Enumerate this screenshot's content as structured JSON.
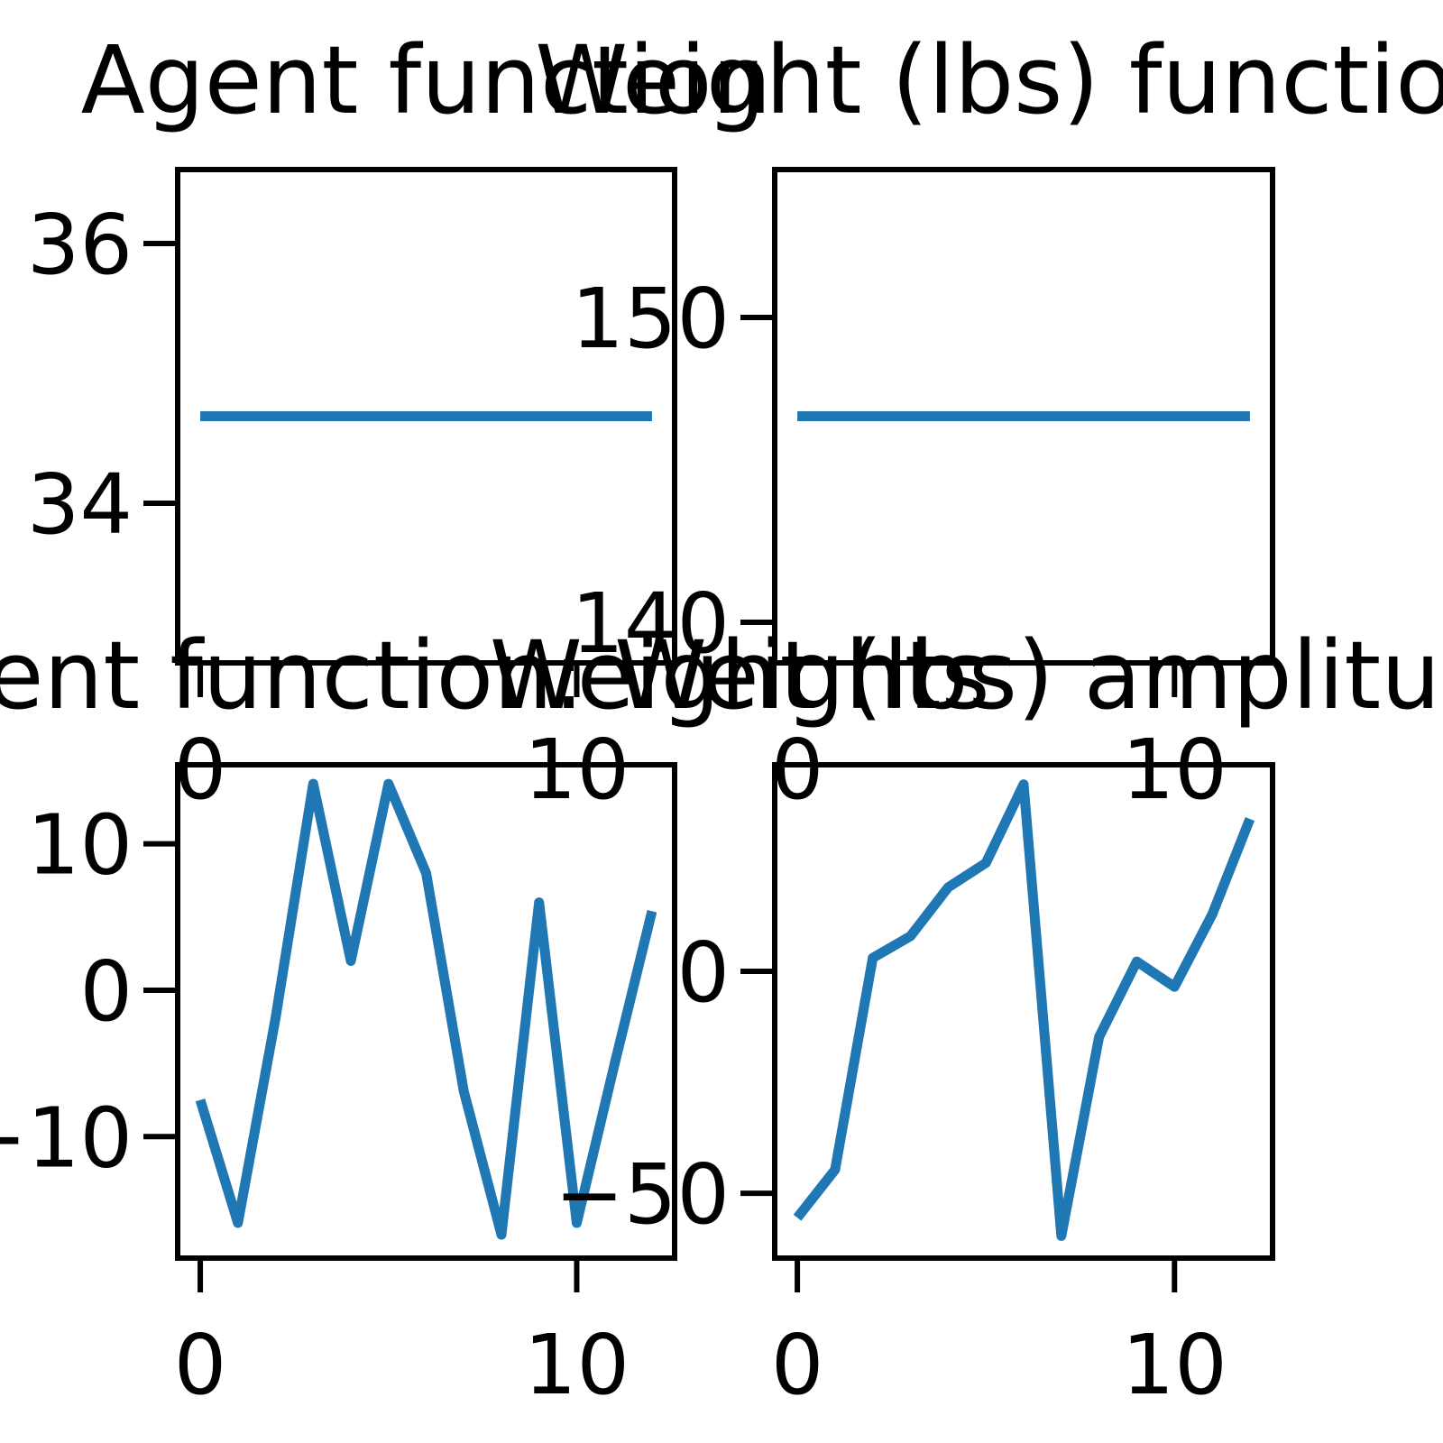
{
  "chart_data": [
    {
      "type": "line",
      "title": "Agent function",
      "x": [
        0,
        1,
        2,
        3,
        4,
        5,
        6,
        7,
        8,
        9,
        10,
        11,
        12
      ],
      "series": [
        {
          "color": "#1f77b4",
          "values": [
            34.67,
            34.67,
            34.67,
            34.67,
            34.67,
            34.67,
            34.67,
            34.67,
            34.67,
            34.67,
            34.67,
            34.67,
            34.67
          ]
        }
      ],
      "xlim": [
        -0.6,
        12.6
      ],
      "xticks": [
        0,
        10
      ],
      "ylim": [
        32.77,
        36.57
      ],
      "yticks": [
        34,
        36
      ]
    },
    {
      "type": "line",
      "title": "Weight (lbs) function",
      "x": [
        0,
        1,
        2,
        3,
        4,
        5,
        6,
        7,
        8,
        9,
        10,
        11,
        12
      ],
      "series": [
        {
          "color": "#1f77b4",
          "values": [
            146.76,
            146.76,
            146.76,
            146.76,
            146.76,
            146.76,
            146.76,
            146.76,
            146.76,
            146.76,
            146.76,
            146.76,
            146.76
          ]
        }
      ],
      "xlim": [
        -0.6,
        12.6
      ],
      "xticks": [
        0,
        10
      ],
      "ylim": [
        138.67,
        154.85
      ],
      "yticks": [
        140,
        150
      ]
    },
    {
      "type": "line",
      "title": "Agent function: Weights",
      "x": [
        0,
        1,
        2,
        3,
        4,
        5,
        6,
        7,
        8,
        9,
        10,
        11,
        12
      ],
      "series": [
        {
          "color": "#1f77b4",
          "values": [
            -7.5,
            -15.9,
            -1.9,
            14.1,
            2.0,
            14.1,
            8.0,
            -6.9,
            -16.7,
            6.0,
            -15.9,
            -5.1,
            5.4
          ]
        }
      ],
      "xlim": [
        -0.6,
        12.6
      ],
      "xticks": [
        0,
        10
      ],
      "ylim": [
        -18.3,
        15.4
      ],
      "yticks": [
        {
          "value": -10,
          "label": "−10"
        },
        0,
        10
      ]
    },
    {
      "type": "line",
      "title": "Weight (lbs) amplitude",
      "x": [
        0,
        1,
        2,
        3,
        4,
        5,
        6,
        7,
        8,
        9,
        10,
        11,
        12
      ],
      "series": [
        {
          "color": "#1f77b4",
          "values": [
            -55.5,
            -44.7,
            3.0,
            7.9,
            18.9,
            24.4,
            42.1,
            -59.6,
            -14.8,
            2.2,
            -3.5,
            12.8,
            34.3
          ]
        }
      ],
      "xlim": [
        -0.6,
        12.6
      ],
      "xticks": [
        0,
        10
      ],
      "ylim": [
        -64.6,
        46.5
      ],
      "yticks": [
        {
          "value": -50,
          "label": "−50"
        },
        0
      ]
    }
  ]
}
